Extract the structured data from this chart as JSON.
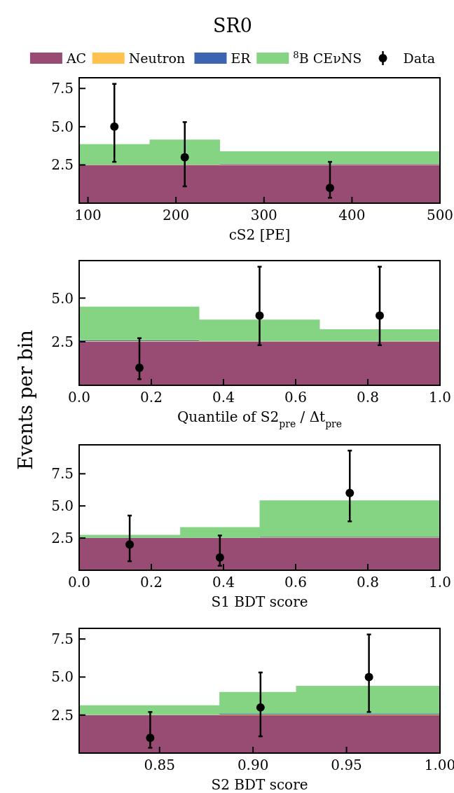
{
  "chart_data": [
    {
      "type": "area",
      "title": "SR0",
      "xlabel": "cS2 [PE]",
      "legend": "top",
      "stacked": true,
      "xlim": [
        90,
        500
      ],
      "xticks": [
        100,
        200,
        300,
        400,
        500
      ],
      "ylim": [
        0,
        8.2
      ],
      "yticks": [
        {
          "value": 2.5,
          "label": "2.5"
        },
        {
          "value": 5,
          "label": "5.0"
        },
        {
          "value": 7.5,
          "label": "7.5"
        }
      ],
      "series": [
        {
          "name": "AC",
          "color": "#984c74",
          "x": [
            90,
            170,
            170,
            250,
            250,
            500
          ],
          "values": [
            2.5,
            2.5,
            2.5,
            2.5,
            2.5,
            2.5
          ]
        },
        {
          "name": "Neutron",
          "color": "#ffc24d",
          "x": [
            90,
            170,
            170,
            250,
            250,
            500
          ],
          "values": [
            0.01,
            0.01,
            0.01,
            0.01,
            0.03,
            0.03
          ]
        },
        {
          "name": "ER",
          "color": "#3d64b0",
          "x": [
            90,
            170,
            170,
            250,
            250,
            500
          ],
          "values": [
            0,
            0,
            0,
            0,
            0.05,
            0.05
          ]
        },
        {
          "name": "$^{8}$B CEνNS",
          "color": "#84d484",
          "x": [
            90,
            170,
            170,
            250,
            250,
            500
          ],
          "values": [
            1.35,
            1.35,
            1.65,
            1.65,
            0.81,
            0.81
          ]
        },
        {
          "name": "Data",
          "type": "scatter",
          "color": "#000000",
          "x": [
            130,
            210,
            375
          ],
          "values": [
            5,
            3,
            1
          ],
          "errors": [
            [
              2.7,
              7.8
            ],
            [
              1.1,
              5.3
            ],
            [
              0.35,
              2.7
            ]
          ]
        }
      ]
    },
    {
      "type": "area",
      "ylabel": "Events per bin",
      "xlabel": "Quantile of S2$_{pre}$ / Δt$_{pre}$",
      "stacked": true,
      "xlim": [
        0,
        1
      ],
      "xticks": [
        {
          "value": 0,
          "label": "0.0"
        },
        0.2,
        0.4,
        0.6,
        0.8,
        {
          "value": 1,
          "label": "1.0"
        }
      ],
      "ylim": [
        0,
        7.15
      ],
      "yticks": [
        {
          "value": 2.5,
          "label": "2.5"
        },
        {
          "value": 5,
          "label": "5.0"
        }
      ],
      "series": [
        {
          "color": "#984c74",
          "x": [
            0,
            0.333,
            0.333,
            0.667,
            0.667,
            1
          ],
          "values": [
            2.5,
            2.5,
            2.5,
            2.5,
            2.5,
            2.5
          ]
        },
        {
          "color": "#ffc24d",
          "x": [
            0,
            0.333,
            0.333,
            0.667,
            0.667,
            1
          ],
          "values": [
            0.03,
            0.03,
            0.02,
            0.02,
            0.02,
            0.02
          ]
        },
        {
          "color": "#3d64b0",
          "x": [
            0,
            0.333,
            0.333,
            0.667,
            0.667,
            1
          ],
          "values": [
            0.05,
            0.05,
            0.02,
            0.02,
            0.02,
            0.02
          ]
        },
        {
          "color": "#84d484",
          "x": [
            0,
            0.333,
            0.333,
            0.667,
            0.667,
            1
          ],
          "values": [
            1.93,
            1.93,
            1.23,
            1.23,
            0.67,
            0.67
          ]
        },
        {
          "type": "scatter",
          "color": "#000000",
          "x": [
            0.167,
            0.5,
            0.833
          ],
          "values": [
            1,
            4,
            4
          ],
          "errors": [
            [
              0.35,
              2.7
            ],
            [
              2.3,
              6.8
            ],
            [
              2.3,
              6.8
            ]
          ]
        }
      ]
    },
    {
      "type": "area",
      "xlabel": "S1 BDT score",
      "stacked": true,
      "xlim": [
        0,
        1
      ],
      "xticks": [
        {
          "value": 0,
          "label": "0.0"
        },
        0.2,
        0.4,
        0.6,
        0.8,
        {
          "value": 1,
          "label": "1.0"
        }
      ],
      "ylim": [
        0,
        9.75
      ],
      "yticks": [
        {
          "value": 2.5,
          "label": "2.5"
        },
        {
          "value": 5,
          "label": "5.0"
        },
        {
          "value": 7.5,
          "label": "7.5"
        }
      ],
      "series": [
        {
          "color": "#984c74",
          "x": [
            0,
            0.28,
            0.28,
            0.5,
            0.5,
            1
          ],
          "values": [
            2.5,
            2.5,
            2.5,
            2.5,
            2.5,
            2.5
          ]
        },
        {
          "color": "#ffc24d",
          "x": [
            0,
            0.28,
            0.28,
            0.5,
            0.5,
            1
          ],
          "values": [
            0.01,
            0.01,
            0.01,
            0.01,
            0.04,
            0.04
          ]
        },
        {
          "color": "#3d64b0",
          "x": [
            0,
            0.28,
            0.28,
            0.5,
            0.5,
            1
          ],
          "values": [
            0.01,
            0.01,
            0.01,
            0.01,
            0.06,
            0.06
          ]
        },
        {
          "color": "#84d484",
          "x": [
            0,
            0.28,
            0.28,
            0.5,
            0.5,
            1
          ],
          "values": [
            0.23,
            0.23,
            0.83,
            0.83,
            2.84,
            2.84
          ]
        },
        {
          "type": "scatter",
          "color": "#000000",
          "x": [
            0.14,
            0.39,
            0.75
          ],
          "values": [
            2,
            1,
            6
          ],
          "errors": [
            [
              0.7,
              4.25
            ],
            [
              0.35,
              2.7
            ],
            [
              3.8,
              9.3
            ]
          ]
        }
      ]
    },
    {
      "type": "area",
      "xlabel": "S2 BDT score",
      "stacked": true,
      "xlim": [
        0.807,
        1
      ],
      "xticks": [
        0.85,
        {
          "value": 0.9,
          "label": "0.90"
        },
        0.95,
        {
          "value": 1,
          "label": "1.00"
        }
      ],
      "ylim": [
        0,
        8.2
      ],
      "yticks": [
        {
          "value": 2.5,
          "label": "2.5"
        },
        {
          "value": 5,
          "label": "5.0"
        },
        {
          "value": 7.5,
          "label": "7.5"
        }
      ],
      "series": [
        {
          "color": "#984c74",
          "x": [
            0.807,
            0.882,
            0.882,
            0.923,
            0.923,
            1
          ],
          "values": [
            2.5,
            2.5,
            2.5,
            2.5,
            2.5,
            2.5
          ]
        },
        {
          "color": "#ffc24d",
          "x": [
            0.807,
            0.882,
            0.882,
            0.923,
            0.923,
            1
          ],
          "values": [
            0.01,
            0.01,
            0.03,
            0.03,
            0.03,
            0.03
          ]
        },
        {
          "color": "#3d64b0",
          "x": [
            0.807,
            0.882,
            0.882,
            0.923,
            0.923,
            1
          ],
          "values": [
            0,
            0,
            0.05,
            0.05,
            0.05,
            0.05
          ]
        },
        {
          "color": "#84d484",
          "x": [
            0.807,
            0.882,
            0.882,
            0.923,
            0.923,
            1
          ],
          "values": [
            0.63,
            0.63,
            1.44,
            1.44,
            1.84,
            1.84
          ]
        },
        {
          "type": "scatter",
          "color": "#000000",
          "x": [
            0.845,
            0.904,
            0.962
          ],
          "values": [
            1,
            3,
            5
          ],
          "errors": [
            [
              0.35,
              2.7
            ],
            [
              1.1,
              5.3
            ],
            [
              2.7,
              7.8
            ]
          ]
        }
      ]
    }
  ]
}
